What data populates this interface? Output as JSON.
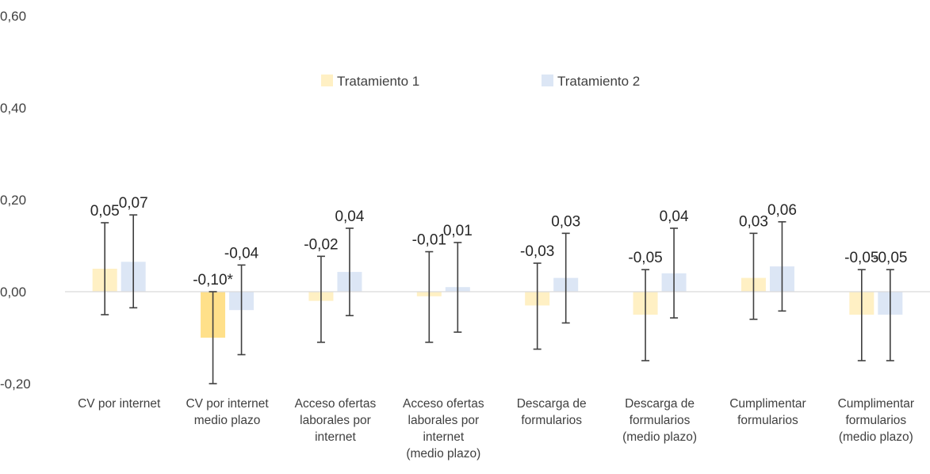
{
  "chart_data": {
    "type": "bar",
    "ylim": [
      -0.2,
      0.6
    ],
    "yticks": [
      "-0,20",
      "0,00",
      "0,20",
      "0,40",
      "0,60"
    ],
    "grid": false,
    "legend_position": "top-center",
    "categories": [
      [
        "CV por internet"
      ],
      [
        "CV por internet",
        "medio plazo"
      ],
      [
        "Acceso ofertas",
        "laborales por",
        "internet"
      ],
      [
        "Acceso ofertas",
        "laborales por",
        "internet",
        "(medio plazo)"
      ],
      [
        "Descarga de",
        "formularios"
      ],
      [
        "Descarga de",
        "formularios",
        "(medio plazo)"
      ],
      [
        "Cumplimentar",
        "formularios"
      ],
      [
        "Cumplimentar",
        "formularios",
        "(medio plazo)"
      ]
    ],
    "series": [
      {
        "name": "Tratamiento 1",
        "color": "#fff0c4",
        "significant_color": "#ffe08a",
        "values": [
          0.05,
          -0.1,
          -0.02,
          -0.01,
          -0.03,
          -0.05,
          0.03,
          -0.05
        ],
        "labels": [
          "0,05",
          "-0,10*",
          "-0,02",
          "-0,01",
          "-0,03",
          "-0,05",
          "0,03",
          "-0,05"
        ],
        "significant": [
          false,
          true,
          false,
          false,
          false,
          false,
          false,
          false
        ],
        "ci_low": [
          -0.05,
          -0.2,
          -0.11,
          -0.11,
          -0.125,
          -0.15,
          -0.06,
          -0.15
        ],
        "ci_high": [
          0.15,
          0.0,
          0.077,
          0.087,
          0.062,
          0.048,
          0.127,
          0.048
        ]
      },
      {
        "name": "Tratamiento 2",
        "color": "#dce6f5",
        "significant_color": "#b4c7e7",
        "values": [
          0.065,
          -0.04,
          0.043,
          0.01,
          0.03,
          0.04,
          0.055,
          -0.05
        ],
        "labels": [
          "0,07",
          "-0,04",
          "0,04",
          "0,01",
          "0,03",
          "0,04",
          "0,06",
          "-0,05"
        ],
        "significant": [
          false,
          false,
          false,
          false,
          false,
          false,
          false,
          false
        ],
        "ci_low": [
          -0.035,
          -0.137,
          -0.052,
          -0.088,
          -0.068,
          -0.057,
          -0.042,
          -0.15
        ],
        "ci_high": [
          0.167,
          0.058,
          0.138,
          0.107,
          0.127,
          0.138,
          0.152,
          0.048
        ]
      }
    ]
  }
}
